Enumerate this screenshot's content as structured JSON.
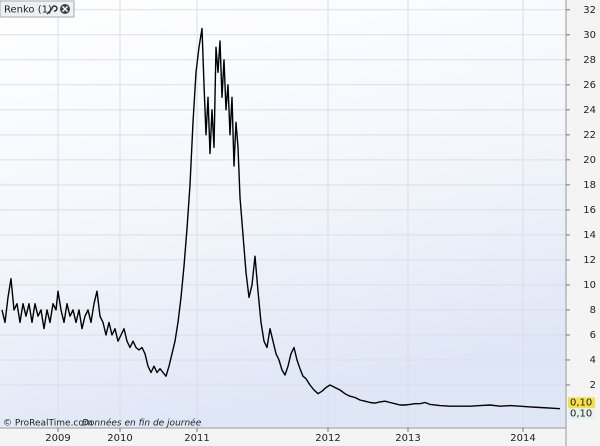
{
  "chart_data": {
    "type": "line",
    "title": "Renko (1)",
    "watermark": "© ProRealTime.com",
    "note": "Données en fin de journée",
    "x": [
      2,
      5,
      8,
      11,
      14,
      17,
      20,
      23,
      26,
      29,
      32,
      35,
      38,
      41,
      44,
      47,
      50,
      53,
      56,
      58,
      61,
      64,
      67,
      70,
      73,
      76,
      79,
      82,
      85,
      88,
      91,
      94,
      97,
      100,
      103,
      106,
      109,
      112,
      115,
      118,
      121,
      124,
      127,
      130,
      133,
      136,
      139,
      142,
      145,
      148,
      151,
      154,
      157,
      160,
      163,
      166,
      169,
      172,
      175,
      178,
      181,
      184,
      187,
      190,
      193,
      196,
      199,
      202,
      204,
      206,
      208,
      210,
      212,
      214,
      216,
      218,
      220,
      222,
      224,
      226,
      228,
      230,
      232,
      234,
      236,
      238,
      240,
      243,
      246,
      249,
      252,
      255,
      258,
      261,
      264,
      267,
      270,
      273,
      276,
      279,
      282,
      285,
      288,
      291,
      294,
      297,
      300,
      303,
      306,
      310,
      314,
      318,
      322,
      326,
      330,
      335,
      340,
      345,
      350,
      355,
      360,
      365,
      370,
      375,
      380,
      385,
      390,
      395,
      400,
      405,
      410,
      415,
      420,
      425,
      430,
      440,
      450,
      460,
      470,
      480,
      490,
      500,
      510,
      520,
      530,
      540,
      550,
      560
    ],
    "values": [
      8,
      7,
      9,
      10.5,
      8,
      8.5,
      7,
      8.5,
      7.5,
      8.5,
      7,
      8.5,
      7.5,
      8,
      6.5,
      8,
      7,
      8.5,
      8,
      9.5,
      8,
      7,
      8.5,
      7.5,
      8,
      7,
      8,
      6.5,
      7.5,
      8,
      7,
      8.5,
      9.5,
      7.5,
      7,
      6,
      7,
      6,
      6.5,
      5.5,
      6,
      6.5,
      5.5,
      5,
      5.5,
      5,
      4.8,
      5,
      4.5,
      3.5,
      3,
      3.5,
      3,
      3.3,
      3,
      2.7,
      3.5,
      4.5,
      5.5,
      7,
      9,
      11.5,
      14.5,
      18,
      23,
      27,
      29,
      30.5,
      26,
      22,
      25,
      20.5,
      24,
      21,
      29,
      27,
      29.5,
      25,
      28,
      24,
      26,
      22,
      25,
      19.5,
      23,
      21,
      17,
      14,
      11,
      9,
      10,
      12.3,
      9.5,
      7,
      5.5,
      5,
      6.5,
      5.5,
      4.5,
      4,
      3.2,
      2.8,
      3.5,
      4.5,
      5,
      4,
      3.3,
      2.7,
      2.5,
      2,
      1.6,
      1.3,
      1.5,
      1.8,
      2,
      1.8,
      1.6,
      1.3,
      1.1,
      1,
      0.8,
      0.7,
      0.6,
      0.55,
      0.65,
      0.7,
      0.6,
      0.5,
      0.4,
      0.4,
      0.45,
      0.5,
      0.5,
      0.6,
      0.45,
      0.35,
      0.3,
      0.3,
      0.3,
      0.35,
      0.4,
      0.3,
      0.35,
      0.3,
      0.25,
      0.2,
      0.15,
      0.1
    ],
    "color": "#000000",
    "last_value_labels": [
      "0,10",
      "0,10"
    ],
    "xlim": [
      0,
      566
    ],
    "xticks": [
      {
        "value": 58,
        "label": "2009"
      },
      {
        "value": 120,
        "label": "2010"
      },
      {
        "value": 197,
        "label": "2011"
      },
      {
        "value": 328,
        "label": "2012"
      },
      {
        "value": 408,
        "label": "2013"
      },
      {
        "value": 523,
        "label": "2014"
      }
    ],
    "ylim": [
      0,
      32.3
    ],
    "yticks": [
      2,
      4,
      6,
      8,
      10,
      12,
      14,
      16,
      18,
      20,
      22,
      24,
      26,
      28,
      30,
      32
    ],
    "grid": true
  }
}
